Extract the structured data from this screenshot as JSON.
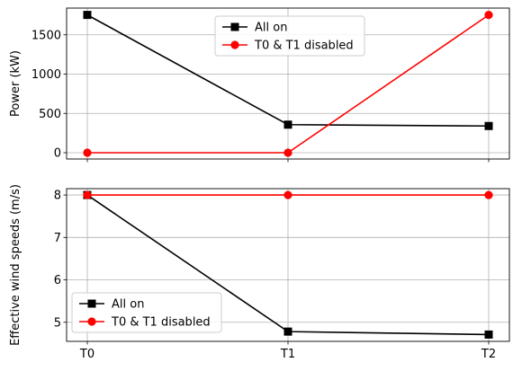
{
  "chart_data": [
    {
      "type": "line",
      "title": "",
      "xlabel": "",
      "ylabel": "Power (kW)",
      "categories": [
        "T0",
        "T1",
        "T2"
      ],
      "show_x_ticklabels": false,
      "ylim": [
        -80,
        1840
      ],
      "yticks": [
        0,
        500,
        1000,
        1500
      ],
      "ytick_labels": [
        "0",
        "500",
        "1000",
        "1500"
      ],
      "grid": true,
      "legend_placement": "upper center",
      "series": [
        {
          "name": "All on",
          "values": [
            1753,
            357,
            340
          ],
          "color": "#000000",
          "marker": "square"
        },
        {
          "name": "T0 & T1 disabled",
          "values": [
            0,
            0,
            1753
          ],
          "color": "#ff0000",
          "marker": "circle"
        }
      ]
    },
    {
      "type": "line",
      "title": "",
      "xlabel": "",
      "ylabel": "Effective wind speeds (m/s)",
      "categories": [
        "T0",
        "T1",
        "T2"
      ],
      "show_x_ticklabels": true,
      "ylim": [
        4.55,
        8.15
      ],
      "yticks": [
        5,
        6,
        7,
        8
      ],
      "ytick_labels": [
        "5",
        "6",
        "7",
        "8"
      ],
      "grid": true,
      "legend_placement": "lower left",
      "series": [
        {
          "name": "All on",
          "values": [
            8.0,
            4.78,
            4.71
          ],
          "color": "#000000",
          "marker": "square"
        },
        {
          "name": "T0 & T1 disabled",
          "values": [
            8.0,
            8.0,
            8.0
          ],
          "color": "#ff0000",
          "marker": "circle"
        }
      ]
    }
  ]
}
